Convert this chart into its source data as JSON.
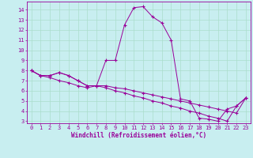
{
  "xlabel": "Windchill (Refroidissement éolien,°C)",
  "background_color": "#c8eef0",
  "grid_color": "#aaddcc",
  "line_color": "#990099",
  "spine_color": "#990099",
  "xlim": [
    -0.5,
    23.5
  ],
  "ylim": [
    2.8,
    14.8
  ],
  "xticks": [
    0,
    1,
    2,
    3,
    4,
    5,
    6,
    7,
    8,
    9,
    10,
    11,
    12,
    13,
    14,
    15,
    16,
    17,
    18,
    19,
    20,
    21,
    22,
    23
  ],
  "yticks": [
    3,
    4,
    5,
    6,
    7,
    8,
    9,
    10,
    11,
    12,
    13,
    14
  ],
  "series": [
    [
      8.0,
      7.5,
      7.5,
      7.8,
      7.5,
      7.0,
      6.5,
      6.5,
      9.0,
      9.0,
      12.5,
      14.2,
      14.3,
      13.3,
      12.7,
      11.0,
      5.2,
      5.0,
      3.3,
      3.2,
      3.0,
      4.2,
      4.5,
      5.3
    ],
    [
      8.0,
      7.5,
      7.5,
      7.8,
      7.5,
      7.0,
      6.5,
      6.5,
      6.5,
      6.3,
      6.2,
      6.0,
      5.8,
      5.6,
      5.4,
      5.2,
      5.0,
      4.8,
      4.6,
      4.4,
      4.2,
      4.0,
      3.8,
      5.3
    ],
    [
      8.0,
      7.5,
      7.3,
      7.0,
      6.8,
      6.5,
      6.3,
      6.5,
      6.3,
      6.0,
      5.8,
      5.5,
      5.3,
      5.0,
      4.8,
      4.5,
      4.3,
      4.0,
      3.8,
      3.5,
      3.3,
      3.0,
      4.5,
      5.3
    ]
  ],
  "xlabel_fontsize": 5.5,
  "tick_fontsize": 5.0,
  "linewidth": 0.7,
  "markersize": 3.0
}
